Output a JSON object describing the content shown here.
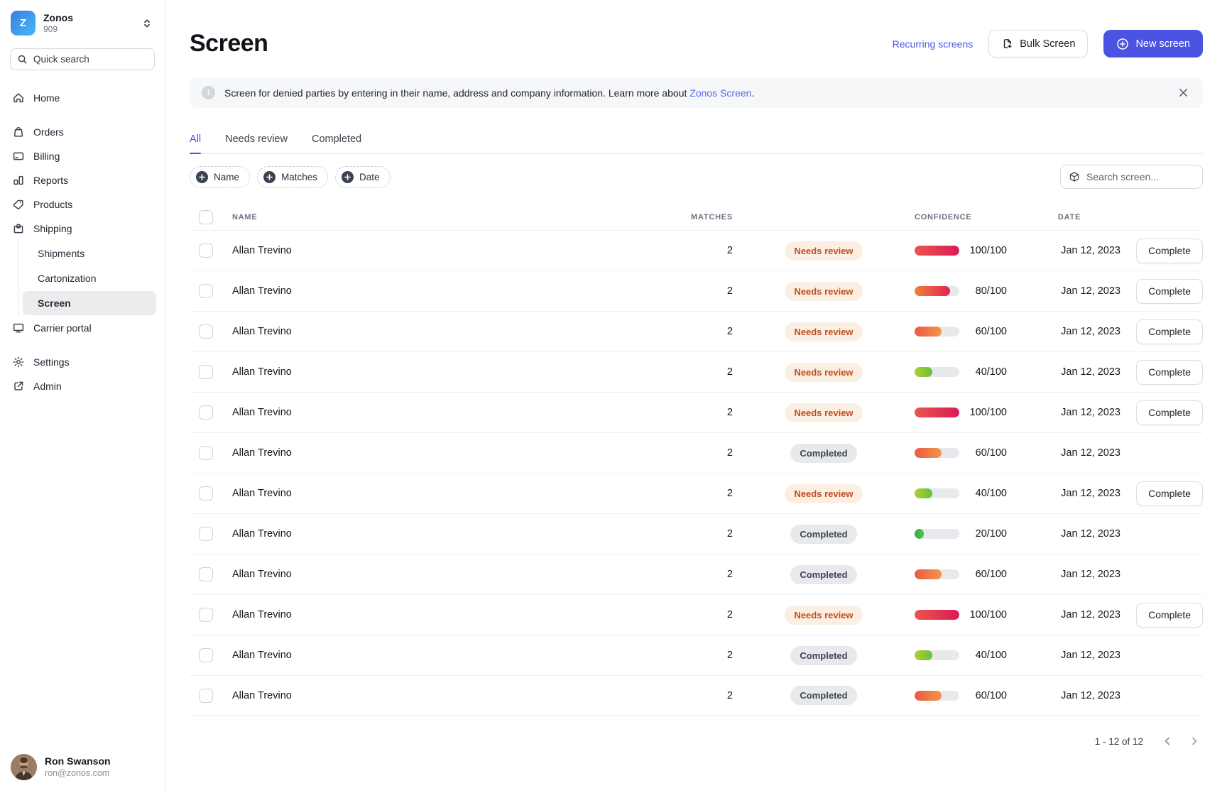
{
  "org": {
    "name": "Zonos",
    "id": "909",
    "logo_letter": "Z"
  },
  "sidebar": {
    "quick_search_label": "Quick search",
    "sections": [
      {
        "items": [
          {
            "label": "Home",
            "icon": "home-icon"
          }
        ]
      },
      {
        "items": [
          {
            "label": "Orders",
            "icon": "orders-icon"
          },
          {
            "label": "Billing",
            "icon": "billing-icon"
          },
          {
            "label": "Reports",
            "icon": "reports-icon"
          },
          {
            "label": "Products",
            "icon": "products-icon"
          },
          {
            "label": "Shipping",
            "icon": "shipping-icon",
            "children": [
              "Shipments",
              "Cartonization",
              "Screen"
            ],
            "active_child": "Screen"
          },
          {
            "label": "Carrier portal",
            "icon": "carrier-portal-icon"
          }
        ]
      },
      {
        "items": [
          {
            "label": "Settings",
            "icon": "settings-icon"
          },
          {
            "label": "Admin",
            "icon": "admin-icon"
          }
        ]
      }
    ],
    "user": {
      "name": "Ron Swanson",
      "email": "ron@zonos.com"
    }
  },
  "header": {
    "title": "Screen",
    "recurring_link": "Recurring screens",
    "bulk_button": "Bulk Screen",
    "new_button": "New screen"
  },
  "banner": {
    "text_before": "Screen for denied parties by entering in their name, address and company information. Learn more about ",
    "link_text": "Zonos Screen",
    "text_after": "."
  },
  "tabs": [
    {
      "label": "All",
      "active": true
    },
    {
      "label": "Needs review",
      "active": false
    },
    {
      "label": "Completed",
      "active": false
    }
  ],
  "filters": [
    "Name",
    "Matches",
    "Date"
  ],
  "search": {
    "placeholder": "Search screen..."
  },
  "table": {
    "columns": {
      "name": "Name",
      "matches": "Matches",
      "confidence": "Confidence",
      "date": "Date"
    },
    "rows": [
      {
        "name": "Allan Trevino",
        "matches": "2",
        "status": "Needs review",
        "confidence": 100,
        "confidence_label": "100/100",
        "date": "Jan 12, 2023",
        "action": "Complete"
      },
      {
        "name": "Allan Trevino",
        "matches": "2",
        "status": "Needs review",
        "confidence": 80,
        "confidence_label": "80/100",
        "date": "Jan 12, 2023",
        "action": "Complete"
      },
      {
        "name": "Allan Trevino",
        "matches": "2",
        "status": "Needs review",
        "confidence": 60,
        "confidence_label": "60/100",
        "date": "Jan 12, 2023",
        "action": "Complete"
      },
      {
        "name": "Allan Trevino",
        "matches": "2",
        "status": "Needs review",
        "confidence": 40,
        "confidence_label": "40/100",
        "date": "Jan 12, 2023",
        "action": "Complete"
      },
      {
        "name": "Allan Trevino",
        "matches": "2",
        "status": "Needs review",
        "confidence": 100,
        "confidence_label": "100/100",
        "date": "Jan 12, 2023",
        "action": "Complete"
      },
      {
        "name": "Allan Trevino",
        "matches": "2",
        "status": "Completed",
        "confidence": 60,
        "confidence_label": "60/100",
        "date": "Jan 12, 2023",
        "action": null
      },
      {
        "name": "Allan Trevino",
        "matches": "2",
        "status": "Needs review",
        "confidence": 40,
        "confidence_label": "40/100",
        "date": "Jan 12, 2023",
        "action": "Complete"
      },
      {
        "name": "Allan Trevino",
        "matches": "2",
        "status": "Completed",
        "confidence": 20,
        "confidence_label": "20/100",
        "date": "Jan 12, 2023",
        "action": null
      },
      {
        "name": "Allan Trevino",
        "matches": "2",
        "status": "Completed",
        "confidence": 60,
        "confidence_label": "60/100",
        "date": "Jan 12, 2023",
        "action": null
      },
      {
        "name": "Allan Trevino",
        "matches": "2",
        "status": "Needs review",
        "confidence": 100,
        "confidence_label": "100/100",
        "date": "Jan 12, 2023",
        "action": "Complete"
      },
      {
        "name": "Allan Trevino",
        "matches": "2",
        "status": "Completed",
        "confidence": 40,
        "confidence_label": "40/100",
        "date": "Jan 12, 2023",
        "action": null
      },
      {
        "name": "Allan Trevino",
        "matches": "2",
        "status": "Completed",
        "confidence": 60,
        "confidence_label": "60/100",
        "date": "Jan 12, 2023",
        "action": null
      }
    ]
  },
  "pagination": {
    "label": "1 - 12 of 12"
  },
  "colors": {
    "accent": "#4a54e1",
    "link": "#5a6cf0",
    "badge_review_bg": "#fbefe3",
    "badge_review_text": "#c24e21",
    "badge_completed_bg": "#e8e9ec",
    "badge_completed_text": "#3f4450",
    "confidence_gradients": {
      "100": [
        "#e9564a",
        "#dc1a56"
      ],
      "80": [
        "#f0823d",
        "#e2244e"
      ],
      "60": [
        "#e85b42",
        "#f5944d"
      ],
      "40": [
        "#b9cc34",
        "#64c238"
      ],
      "20": [
        "#2fae50",
        "#58c53c"
      ]
    }
  }
}
